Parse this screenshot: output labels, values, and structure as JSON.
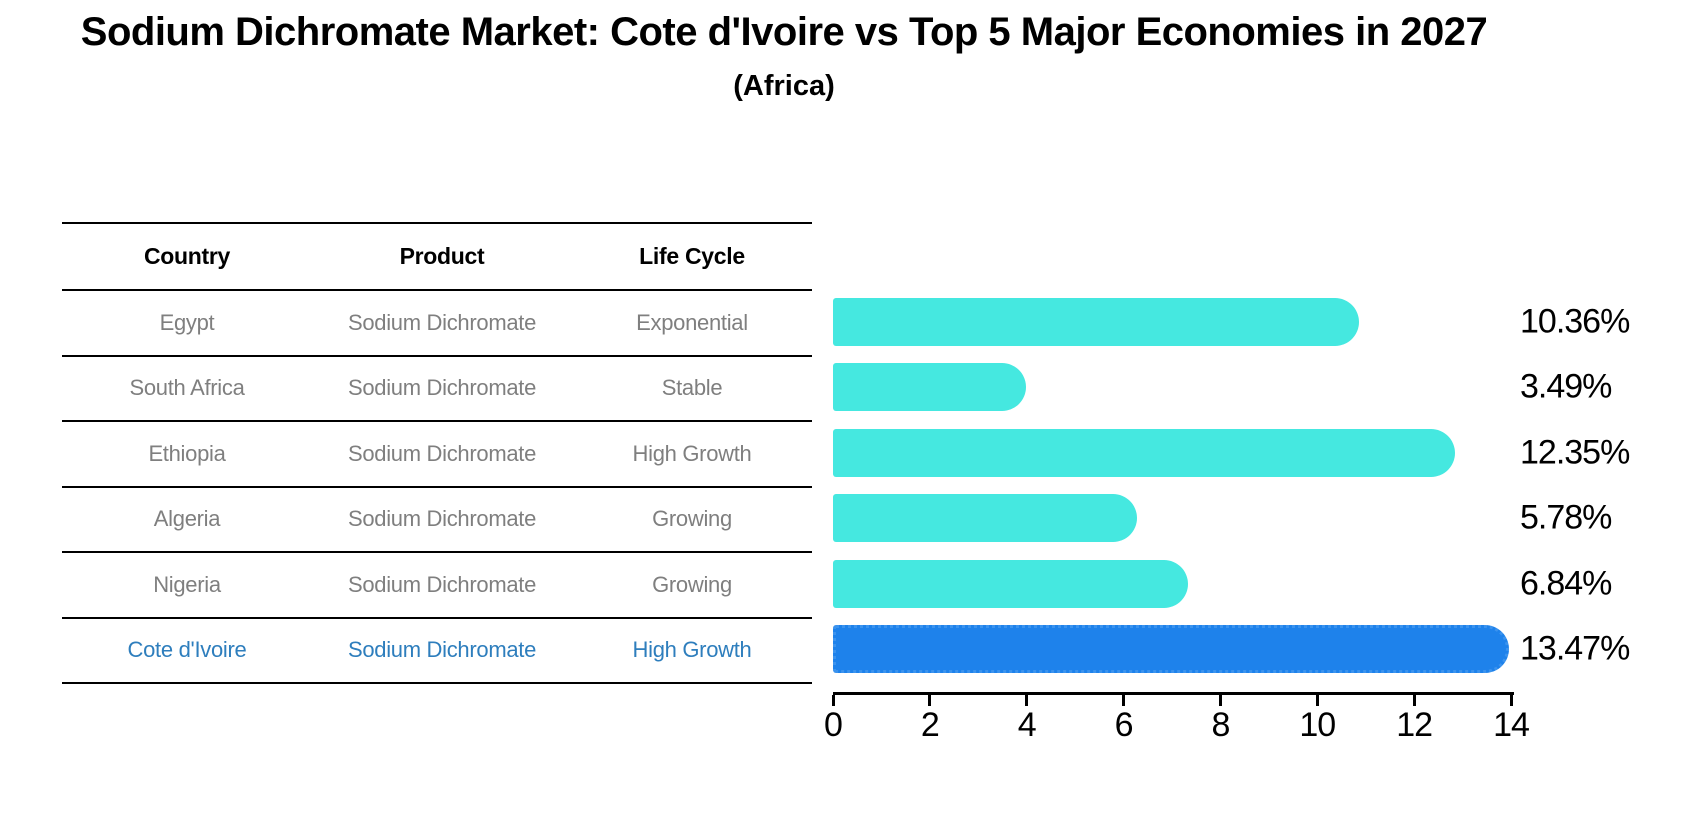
{
  "header": {
    "title": "Sodium Dichromate Market: Cote d'Ivoire vs Top 5 Major Economies in 2027",
    "subtitle": "(Africa)"
  },
  "table": {
    "headers": [
      "Country",
      "Product",
      "Life Cycle"
    ],
    "rows": [
      {
        "country": "Egypt",
        "product": "Sodium Dichromate",
        "life_cycle": "Exponential",
        "highlight": false
      },
      {
        "country": "South Africa",
        "product": "Sodium Dichromate",
        "life_cycle": "Stable",
        "highlight": false
      },
      {
        "country": "Ethiopia",
        "product": "Sodium Dichromate",
        "life_cycle": "High Growth",
        "highlight": false
      },
      {
        "country": "Algeria",
        "product": "Sodium Dichromate",
        "life_cycle": "Growing",
        "highlight": false
      },
      {
        "country": "Nigeria",
        "product": "Sodium Dichromate",
        "life_cycle": "Growing",
        "highlight": false
      },
      {
        "country": "Cote d'Ivoire",
        "product": "Sodium Dichromate",
        "life_cycle": "High Growth",
        "highlight": true
      }
    ]
  },
  "chart_data": {
    "type": "bar",
    "orientation": "horizontal",
    "title": "Sodium Dichromate Market: Cote d'Ivoire vs Top 5 Major Economies in 2027",
    "subtitle": "(Africa)",
    "categories": [
      "Egypt",
      "South Africa",
      "Ethiopia",
      "Algeria",
      "Nigeria",
      "Cote d'Ivoire"
    ],
    "values": [
      10.36,
      3.49,
      12.35,
      5.78,
      6.84,
      13.47
    ],
    "value_labels": [
      "10.36%",
      "3.49%",
      "12.35%",
      "5.78%",
      "6.84%",
      "13.47%"
    ],
    "xlim": [
      0,
      14
    ],
    "xticks": [
      "0",
      "2",
      "4",
      "6",
      "8",
      "10",
      "12",
      "14"
    ],
    "grid": false,
    "legend": false,
    "highlight_index": 5
  },
  "colors": {
    "bar": "#45e8e0",
    "highlight_bar": "#1e82eb",
    "highlight_border": "#3b93ee",
    "highlight_text": "#2e7ebd",
    "row_text": "#7f7f7f",
    "heading_text": "#000000"
  }
}
